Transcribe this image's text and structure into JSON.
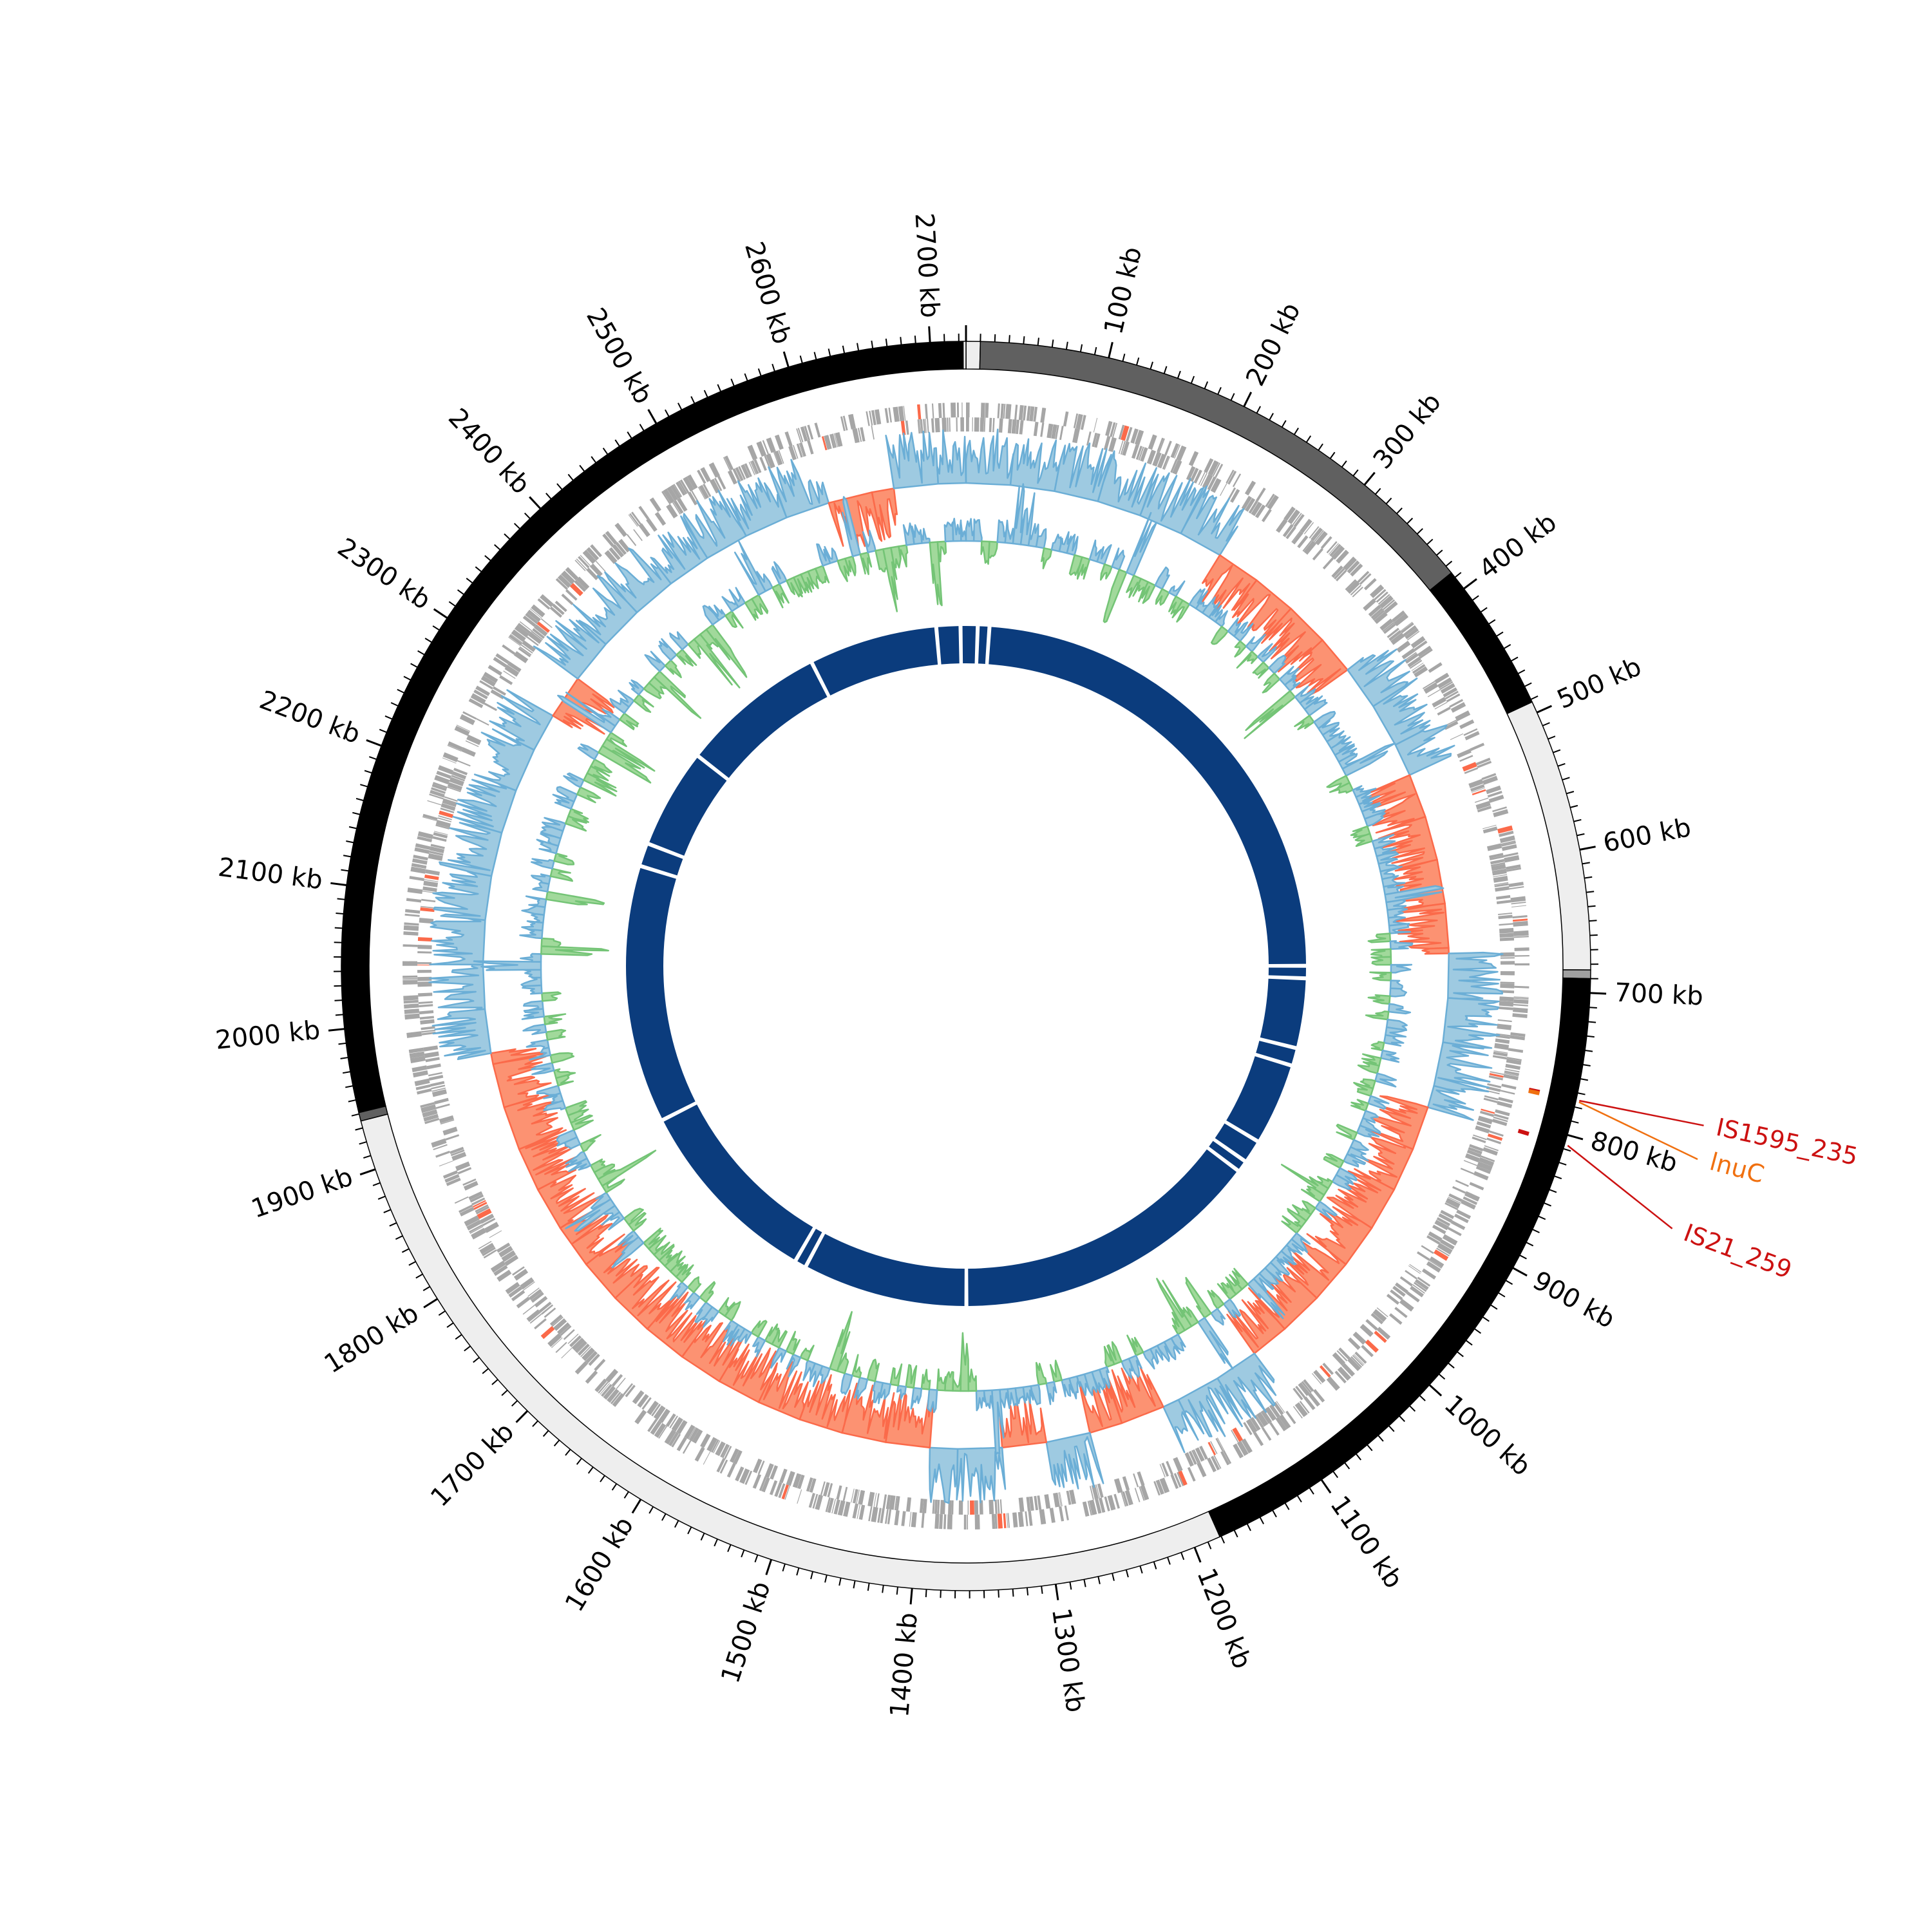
{
  "chart_data": {
    "type": "circular-genome",
    "genome_length_kb": 2725,
    "tick_unit": "kb",
    "major_ticks_kb": [
      100,
      200,
      300,
      400,
      500,
      600,
      700,
      800,
      900,
      1000,
      1100,
      1200,
      1300,
      1400,
      1500,
      1600,
      1700,
      1800,
      1900,
      2000,
      2100,
      2200,
      2300,
      2400,
      2500,
      2600,
      2700
    ],
    "tick_labels": [
      "100 kb",
      "200 kb",
      "300 kb",
      "400 kb",
      "500 kb",
      "600 kb",
      "700 kb",
      "800 kb",
      "900 kb",
      "1000 kb",
      "1100 kb",
      "1200 kb",
      "1300 kb",
      "1400 kb",
      "1500 kb",
      "1600 kb",
      "1700 kb",
      "1800 kb",
      "1900 kb",
      "2000 kb",
      "2100 kb",
      "2200 kb",
      "2300 kb",
      "2400 kb",
      "2500 kb",
      "2600 kb",
      "2700 kb"
    ],
    "contigs": [
      {
        "start": 0,
        "end": 10,
        "color": "#eeeeee"
      },
      {
        "start": 10,
        "end": 386,
        "color": "#606060"
      },
      {
        "start": 386,
        "end": 492,
        "color": "#000000"
      },
      {
        "start": 492,
        "end": 684,
        "color": "#eeeeee"
      },
      {
        "start": 684,
        "end": 690,
        "color": "#a0a0a0"
      },
      {
        "start": 690,
        "end": 1181,
        "color": "#000000"
      },
      {
        "start": 1181,
        "end": 1935,
        "color": "#eeeeee"
      },
      {
        "start": 1935,
        "end": 1941,
        "color": "#606060"
      },
      {
        "start": 1941,
        "end": 2723,
        "color": "#000000"
      },
      {
        "start": 2723,
        "end": 2725,
        "color": "#eeeeee"
      }
    ],
    "annotations": [
      {
        "label": "IS1595_235",
        "position_kb": 775,
        "color": "#cc1111"
      },
      {
        "label": "lnuC",
        "position_kb": 776,
        "color": "#f07010"
      },
      {
        "label": "IS21_259",
        "position_kb": 807,
        "color": "#cc1111"
      }
    ],
    "gc_content_regions": [
      {
        "start": 0,
        "end": 240,
        "sign": "high"
      },
      {
        "start": 240,
        "end": 395,
        "sign": "low"
      },
      {
        "start": 395,
        "end": 505,
        "sign": "high"
      },
      {
        "start": 505,
        "end": 670,
        "sign": "low"
      },
      {
        "start": 670,
        "end": 810,
        "sign": "high"
      },
      {
        "start": 810,
        "end": 1085,
        "sign": "low"
      },
      {
        "start": 1085,
        "end": 1180,
        "sign": "high"
      },
      {
        "start": 1180,
        "end": 1250,
        "sign": "low"
      },
      {
        "start": 1250,
        "end": 1330,
        "sign": "mixed"
      },
      {
        "start": 1330,
        "end": 1395,
        "sign": "high"
      },
      {
        "start": 1395,
        "end": 1965,
        "sign": "low"
      },
      {
        "start": 1965,
        "end": 2280,
        "sign": "high"
      },
      {
        "start": 2280,
        "end": 2320,
        "sign": "low"
      },
      {
        "start": 2320,
        "end": 2600,
        "sign": "high"
      },
      {
        "start": 2600,
        "end": 2660,
        "sign": "mixed"
      },
      {
        "start": 2660,
        "end": 2725,
        "sign": "high"
      }
    ],
    "ring_gaps_kb": [
      2687,
      2718,
      15,
      30,
      2521,
      2332,
      2203,
      2173,
      681,
      697,
      787,
      810,
      916,
      946,
      961,
      1362,
      1575,
      1590,
      1840
    ],
    "colors": {
      "gene": "#a6a6a6",
      "gc_high_line": "#6baed6",
      "gc_high_fill": "#9ecae1",
      "gc_low_line": "#fb6a4a",
      "gc_low_fill": "#fc9272",
      "skew_pos_line": "#6baed6",
      "skew_pos_fill": "#9ecae1",
      "skew_neg_line": "#74c476",
      "skew_neg_fill": "#a1d99b",
      "ring": "#0b3c7d"
    }
  }
}
